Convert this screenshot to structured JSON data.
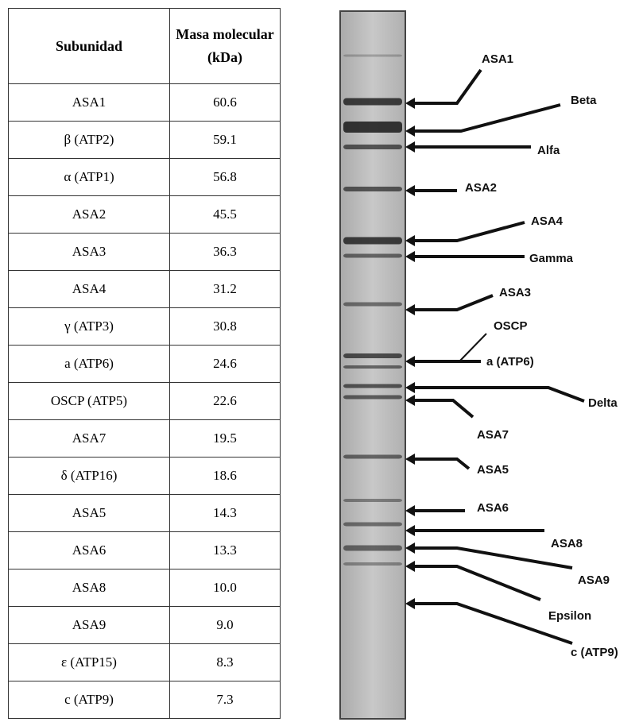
{
  "table": {
    "header": {
      "subunit": "Subunidad",
      "mass_line1": "Masa molecular",
      "mass_line2": "(kDa)"
    },
    "rows": [
      [
        "ASA1",
        "60.6"
      ],
      [
        "β (ATP2)",
        "59.1"
      ],
      [
        "α (ATP1)",
        "56.8"
      ],
      [
        "ASA2",
        "45.5"
      ],
      [
        "ASA3",
        "36.3"
      ],
      [
        "ASA4",
        "31.2"
      ],
      [
        "γ (ATP3)",
        "30.8"
      ],
      [
        "a (ATP6)",
        "24.6"
      ],
      [
        "OSCP (ATP5)",
        "22.6"
      ],
      [
        "ASA7",
        "19.5"
      ],
      [
        "δ (ATP16)",
        "18.6"
      ],
      [
        "ASA5",
        "14.3"
      ],
      [
        "ASA6",
        "13.3"
      ],
      [
        "ASA8",
        "10.0"
      ],
      [
        "ASA9",
        "9.0"
      ],
      [
        "ε (ATP15)",
        "8.3"
      ],
      [
        "c (ATP9)",
        "7.3"
      ]
    ]
  },
  "gel": {
    "labels": [
      "ASA1",
      "Beta",
      "Alfa",
      "ASA2",
      "ASA4",
      "Gamma",
      "ASA3",
      "OSCP",
      "a (ATP6)",
      "Delta",
      "ASA7",
      "ASA5",
      "ASA6",
      "ASA8",
      "ASA9",
      "Epsilon",
      "c (ATP9)"
    ]
  }
}
